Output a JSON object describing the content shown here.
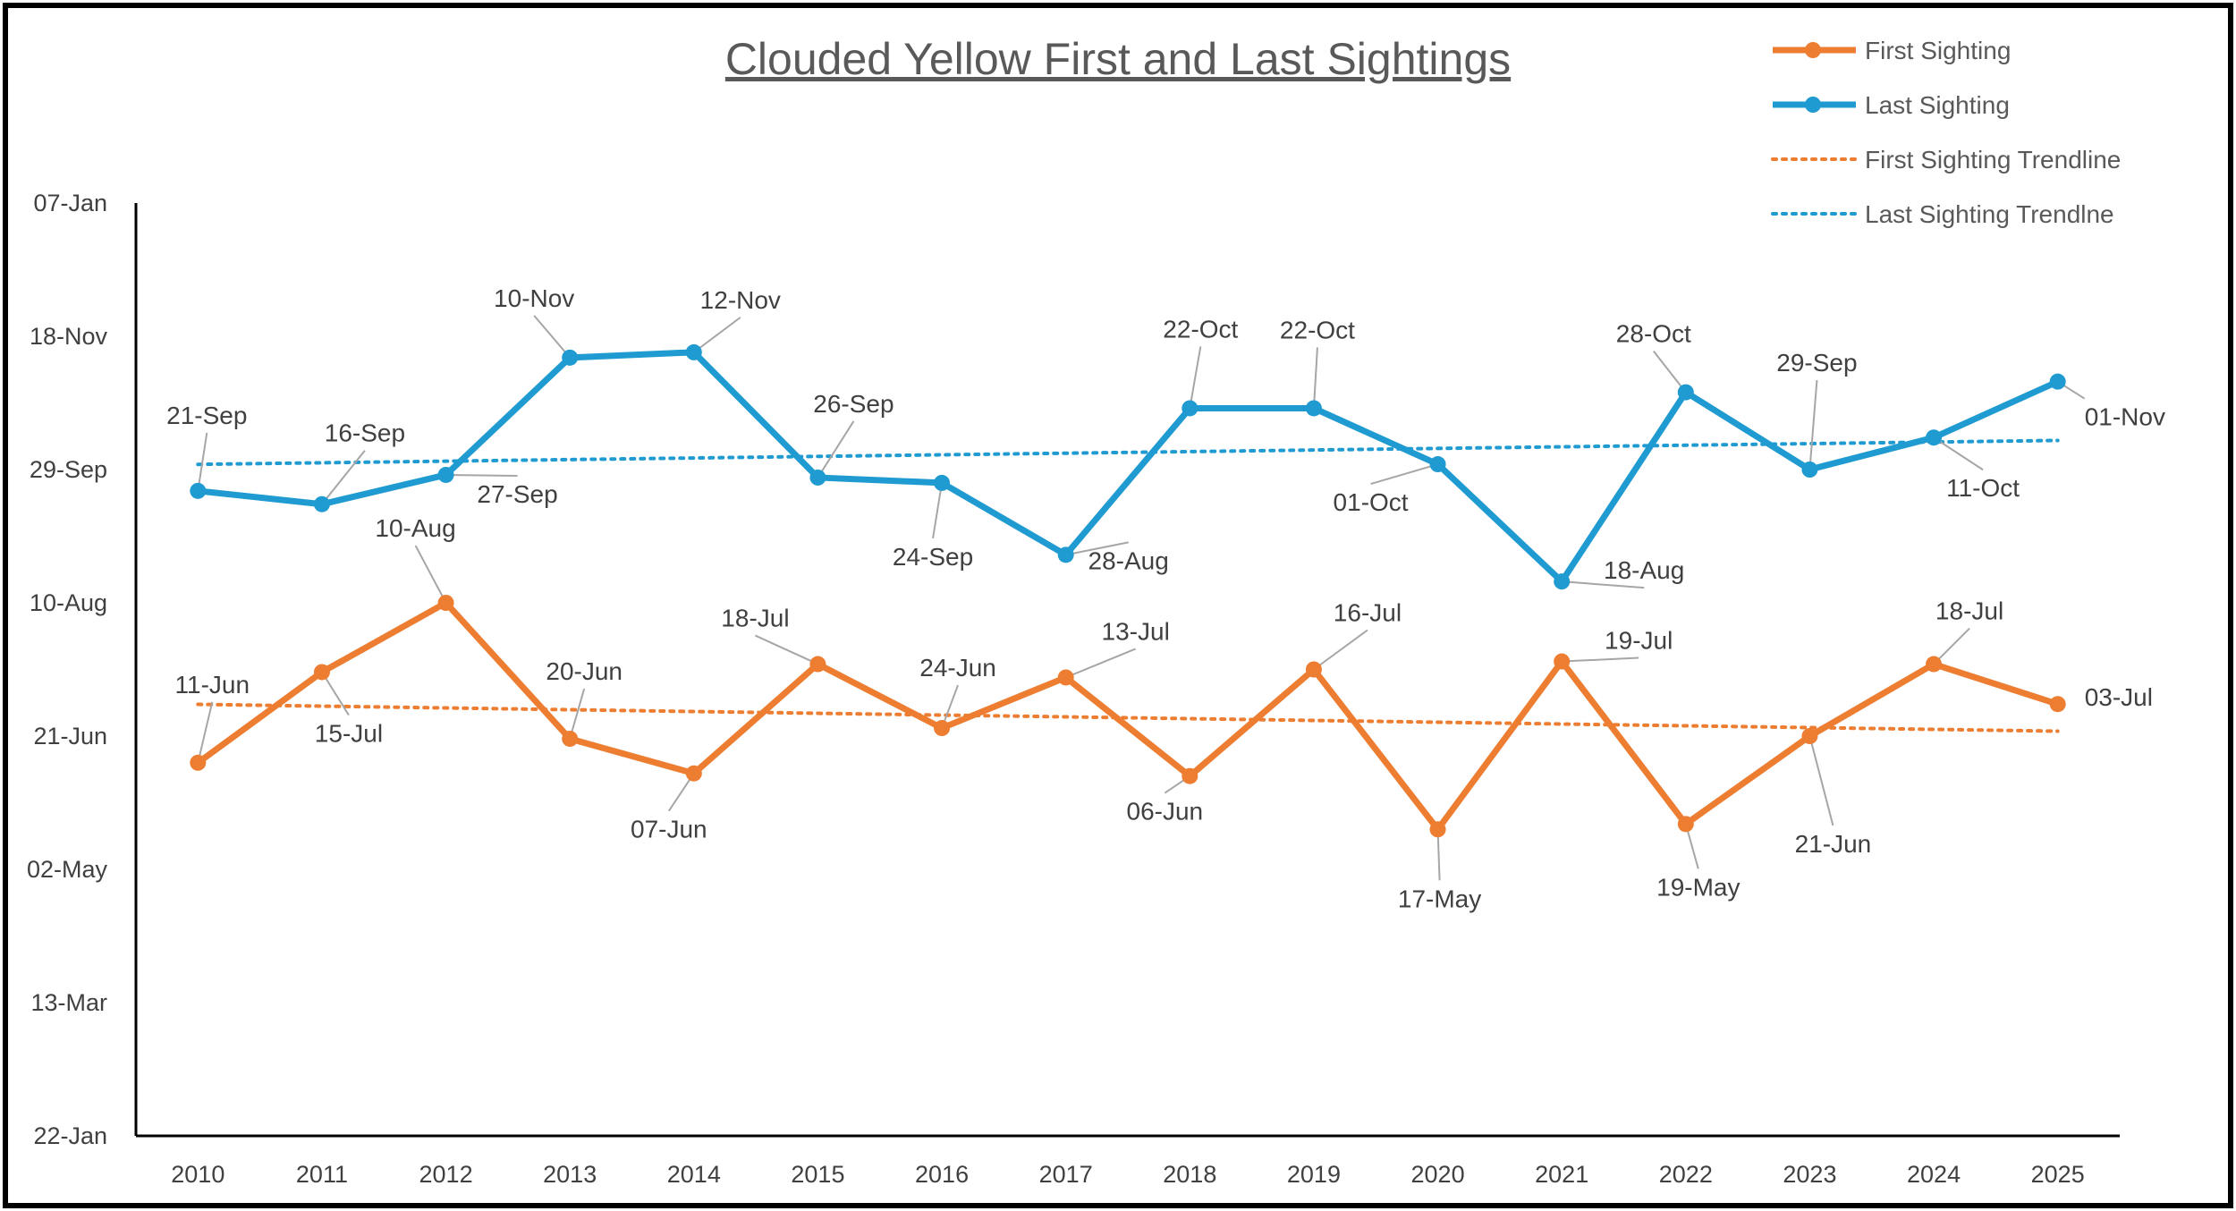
{
  "chart_data": {
    "type": "line",
    "title": "Clouded Yellow First and Last Sightings",
    "x": [
      "2010",
      "2011",
      "2012",
      "2013",
      "2014",
      "2015",
      "2016",
      "2017",
      "2018",
      "2019",
      "2020",
      "2021",
      "2022",
      "2023",
      "2024",
      "2025"
    ],
    "y_ticks": [
      "22-Jan",
      "13-Mar",
      "02-May",
      "21-Jun",
      "10-Aug",
      "29-Sep",
      "18-Nov",
      "07-Jan"
    ],
    "ylim": [
      "22-Jan",
      "07-Jan"
    ],
    "grid": false,
    "legend_position": "top-right",
    "series": [
      {
        "name": "First Sighting",
        "color": "#ED7D31",
        "values": [
          "11-Jun",
          "15-Jul",
          "10-Aug",
          "20-Jun",
          "07-Jun",
          "18-Jul",
          "24-Jun",
          "13-Jul",
          "06-Jun",
          "16-Jul",
          "17-May",
          "19-Jul",
          "19-May",
          "21-Jun",
          "18-Jul",
          "03-Jul"
        ]
      },
      {
        "name": "Last Sighting",
        "color": "#1F9BD1",
        "values": [
          "21-Sep",
          "16-Sep",
          "27-Sep",
          "10-Nov",
          "12-Nov",
          "26-Sep",
          "24-Sep",
          "28-Aug",
          "22-Oct",
          "22-Oct",
          "01-Oct",
          "18-Aug",
          "28-Oct",
          "29-Sep",
          "11-Oct",
          "01-Nov"
        ]
      },
      {
        "name": "First Sighting Trendline",
        "color": "#ED7D31",
        "style": "dotted",
        "trend_of": "First Sighting"
      },
      {
        "name": "Last Sighting Trendlne",
        "color": "#1F9BD1",
        "style": "dotted",
        "trend_of": "Last Sighting"
      }
    ]
  }
}
